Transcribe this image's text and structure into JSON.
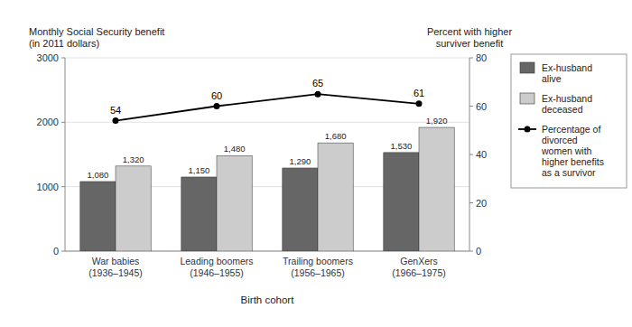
{
  "chart_data": {
    "type": "bar",
    "categories": [
      "War babies\n(1936–1945)",
      "Leading boomers\n(1946–1955)",
      "Trailing boomers\n(1956–1965)",
      "GenXers\n(1966–1975)"
    ],
    "xlabel": "Birth cohort",
    "ylabel": "Monthly Social Security benefit\n(in 2011 dollars)",
    "y2label": "Percent with higher\nsurviver benefit",
    "series": [
      {
        "name": "Ex-husband\nalive",
        "color": "#666666",
        "values": [
          1080,
          1150,
          1290,
          1530
        ],
        "value_labels": [
          "1,080",
          "1,150",
          "1,290",
          "1,530"
        ]
      },
      {
        "name": "Ex-husband\ndeceased",
        "color": "#cccccc",
        "values": [
          1320,
          1480,
          1680,
          1920
        ],
        "value_labels": [
          "1,320",
          "1,480",
          "1,680",
          "1,920"
        ]
      },
      {
        "name": "Percentage of\ndivorced\nwomen with\nhigher benefits\nas a survivor",
        "type": "line",
        "axis": "y2",
        "color": "#000000",
        "marker": "circle",
        "values": [
          54,
          60,
          65,
          61
        ]
      }
    ],
    "ylim": [
      0,
      3000
    ],
    "yticks": [
      0,
      1000,
      2000,
      3000
    ],
    "y2lim": [
      0,
      80
    ],
    "y2ticks": [
      0,
      20,
      40,
      60,
      80
    ],
    "grid": true,
    "legend": "right",
    "data_labels": true
  }
}
